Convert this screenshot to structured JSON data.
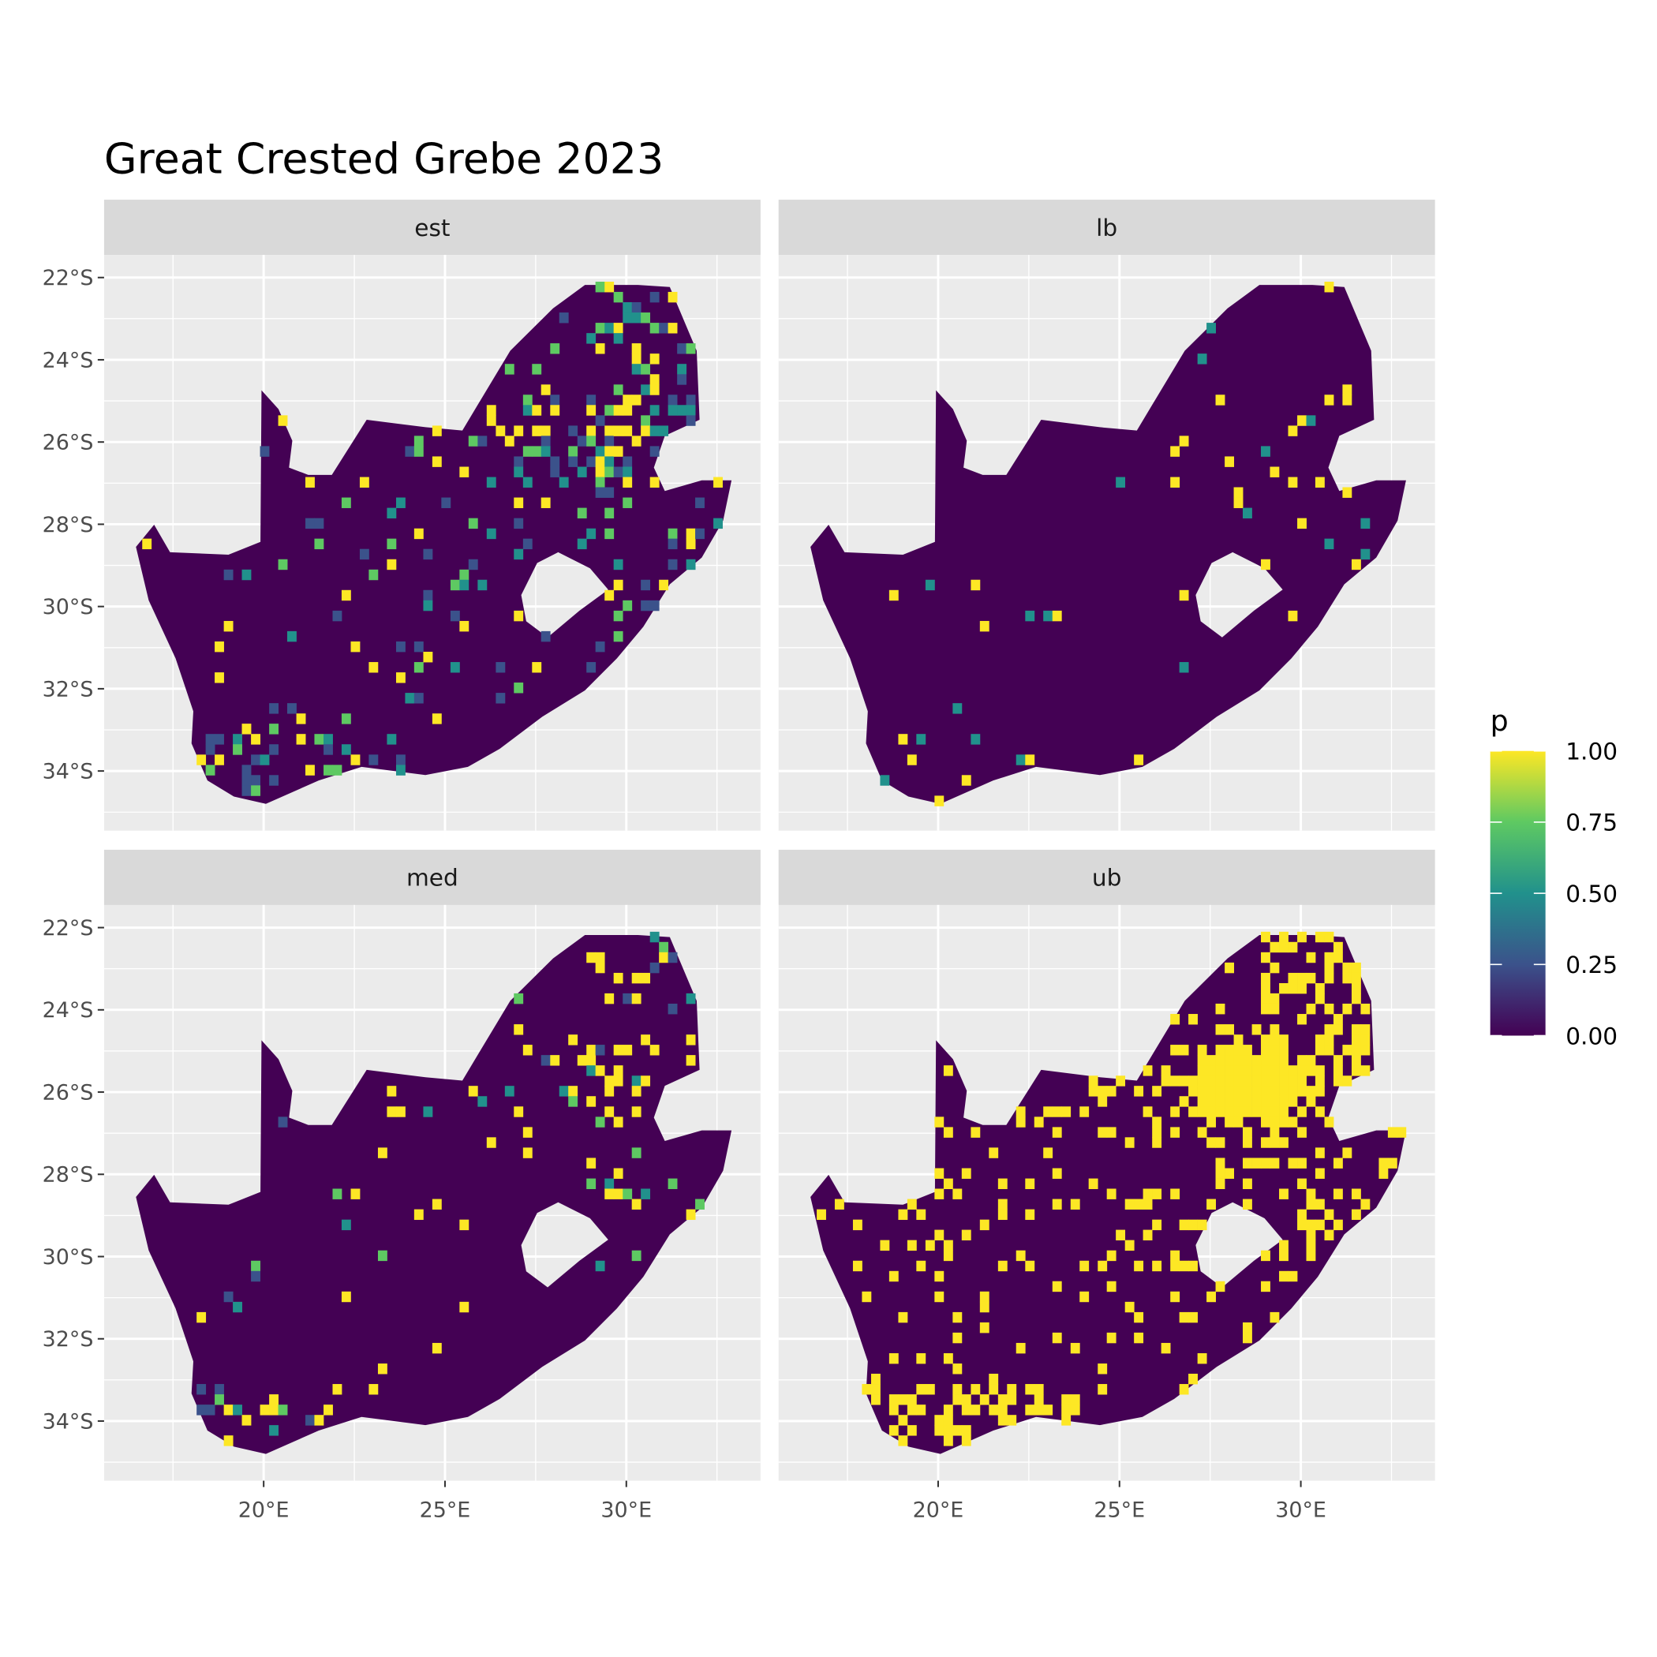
{
  "chart_data": {
    "type": "heatmap",
    "title": "Great Crested Grebe 2023",
    "facets": [
      "est",
      "lb",
      "med",
      "ub"
    ],
    "xlabel": "",
    "ylabel": "",
    "x_ticks": [
      20,
      25,
      30
    ],
    "x_tick_labels": [
      "20°E",
      "25°E",
      "30°E"
    ],
    "y_ticks": [
      -22,
      -24,
      -26,
      -28,
      -30,
      -32,
      -34
    ],
    "y_tick_labels": [
      "22°S",
      "24°S",
      "26°S",
      "28°S",
      "30°S",
      "32°S",
      "34°S"
    ],
    "xlim": [
      15.6,
      33.7
    ],
    "ylim": [
      -35.45,
      -21.45
    ],
    "grid": true,
    "legend": {
      "title": "p",
      "position": "right",
      "ticks": [
        1.0,
        0.75,
        0.5,
        0.25,
        0.0
      ],
      "tick_labels": [
        "1.00",
        "0.75",
        "0.50",
        "0.25",
        "0.00"
      ],
      "colors": [
        "#440154",
        "#3b528b",
        "#21918c",
        "#5ec962",
        "#fde725"
      ]
    },
    "colors": {
      "panel_bg": "#ebebeb",
      "strip_bg": "#d9d9d9",
      "grid": "#ffffff",
      "low": "#440154",
      "high": "#fde725"
    }
  }
}
